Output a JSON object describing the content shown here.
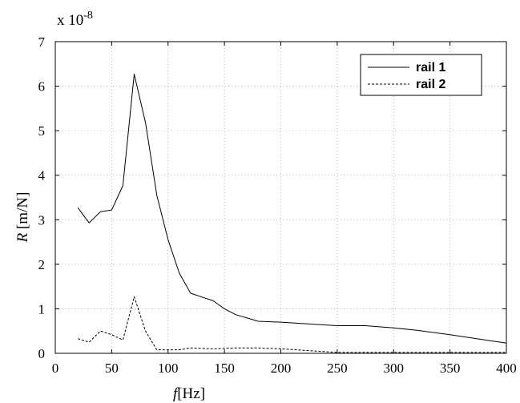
{
  "chart_data": {
    "type": "line",
    "title": "",
    "multiplier": "x 10",
    "multiplier_exponent": "-8",
    "xlabel": "f",
    "xlabel_unit": "[Hz]",
    "ylabel": "R",
    "ylabel_unit": "[m/N]",
    "xlim": [
      0,
      400
    ],
    "ylim": [
      0,
      7
    ],
    "x_ticks": [
      0,
      50,
      100,
      150,
      200,
      250,
      300,
      350,
      400
    ],
    "y_ticks": [
      0,
      1,
      2,
      3,
      4,
      5,
      6,
      7
    ],
    "grid": true,
    "legend_position": "top-right",
    "series": [
      {
        "name": "rail 1",
        "style": "solid",
        "color": "#000000",
        "x": [
          20,
          30,
          40,
          50,
          60,
          70,
          80,
          90,
          100,
          110,
          120,
          140,
          150,
          160,
          180,
          200,
          250,
          275,
          300,
          320,
          350,
          400
        ],
        "y": [
          3.27,
          2.93,
          3.18,
          3.22,
          3.77,
          6.27,
          5.18,
          3.55,
          2.55,
          1.8,
          1.35,
          1.18,
          1.0,
          0.87,
          0.72,
          0.7,
          0.62,
          0.62,
          0.57,
          0.52,
          0.42,
          0.23
        ]
      },
      {
        "name": "rail 2",
        "style": "dashed",
        "color": "#000000",
        "x": [
          20,
          30,
          40,
          50,
          60,
          70,
          80,
          90,
          100,
          110,
          120,
          140,
          160,
          180,
          200,
          250,
          300,
          350,
          400
        ],
        "y": [
          0.33,
          0.25,
          0.5,
          0.42,
          0.3,
          1.27,
          0.5,
          0.08,
          0.08,
          0.08,
          0.12,
          0.1,
          0.12,
          0.12,
          0.1,
          0.02,
          0.02,
          0.02,
          0.02
        ]
      }
    ]
  }
}
